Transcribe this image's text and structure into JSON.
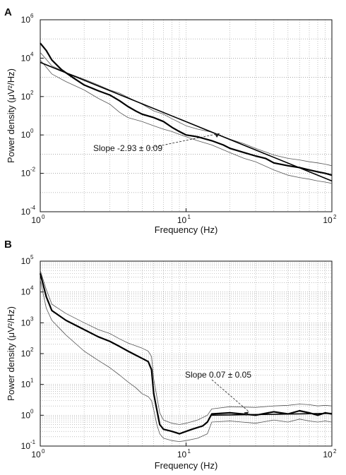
{
  "chart_data": [
    {
      "panel_label": "A",
      "type": "line",
      "xlabel": "Frequency (Hz)",
      "ylabel": "Power density (μV²/Hz)",
      "xscale": "log",
      "yscale": "log",
      "xlim": [
        1,
        100
      ],
      "ylim": [
        0.0001,
        1000000
      ],
      "x_ticks": [
        {
          "value": 1,
          "base": "10",
          "exp": "0"
        },
        {
          "value": 10,
          "base": "10",
          "exp": "1"
        },
        {
          "value": 100,
          "base": "10",
          "exp": "2"
        }
      ],
      "y_ticks": [
        {
          "value": 0.0001,
          "base": "10",
          "exp": "-4"
        },
        {
          "value": 0.01,
          "base": "10",
          "exp": "-2"
        },
        {
          "value": 1,
          "base": "10",
          "exp": "0"
        },
        {
          "value": 100,
          "base": "10",
          "exp": "2"
        },
        {
          "value": 10000,
          "base": "10",
          "exp": "4"
        },
        {
          "value": 1000000,
          "base": "10",
          "exp": "6"
        }
      ],
      "grid": true,
      "annotation": "Slope  -2.93 ± 0.09",
      "annotation_target": [
        17,
        1.2
      ],
      "series": [
        {
          "role": "mean",
          "style": "thick",
          "x": [
            1,
            1.1,
            1.2,
            1.4,
            1.7,
            2,
            2.5,
            3,
            3.5,
            4,
            4.5,
            5,
            6,
            7,
            8,
            9,
            10,
            12,
            15,
            18,
            20,
            25,
            30,
            35,
            40,
            50,
            60,
            70,
            80,
            90,
            100
          ],
          "y": [
            60000,
            25000,
            8000,
            2500,
            900,
            400,
            200,
            120,
            60,
            30,
            18,
            12,
            8,
            5,
            2.5,
            1.5,
            1.0,
            0.8,
            0.5,
            0.3,
            0.2,
            0.12,
            0.08,
            0.06,
            0.035,
            0.025,
            0.02,
            0.015,
            0.012,
            0.01,
            0.008
          ]
        },
        {
          "role": "upper",
          "style": "thin",
          "x": [
            1,
            1.2,
            1.5,
            2,
            2.5,
            3,
            3.5,
            4,
            5,
            6,
            7,
            8,
            10,
            12,
            15,
            20,
            25,
            30,
            40,
            50,
            60,
            70,
            80,
            90,
            100
          ],
          "y": [
            20000,
            4000,
            1800,
            800,
            400,
            220,
            150,
            90,
            40,
            18,
            12,
            7,
            3,
            2,
            1.4,
            0.6,
            0.35,
            0.2,
            0.09,
            0.06,
            0.05,
            0.04,
            0.035,
            0.03,
            0.025
          ]
        },
        {
          "role": "lower",
          "style": "thin",
          "x": [
            1,
            1.2,
            1.5,
            2,
            2.5,
            3,
            3.5,
            4,
            5,
            6,
            7,
            8,
            10,
            12,
            15,
            20,
            25,
            30,
            40,
            50,
            60,
            70,
            80,
            90,
            100
          ],
          "y": [
            8000,
            1500,
            600,
            220,
            80,
            40,
            15,
            8,
            5,
            3,
            2,
            1.5,
            0.8,
            0.5,
            0.3,
            0.12,
            0.06,
            0.04,
            0.015,
            0.008,
            0.006,
            0.005,
            0.004,
            0.0035,
            0.003
          ]
        },
        {
          "role": "fit",
          "style": "straight",
          "x": [
            1,
            100
          ],
          "y": [
            6000,
            0.004
          ]
        }
      ]
    },
    {
      "panel_label": "B",
      "type": "line",
      "xlabel": "Frequency (Hz)",
      "ylabel": "Power density (μV²/Hz)",
      "xscale": "log",
      "yscale": "log",
      "xlim": [
        1,
        100
      ],
      "ylim": [
        0.1,
        100000
      ],
      "x_ticks": [
        {
          "value": 1,
          "base": "10",
          "exp": "0"
        },
        {
          "value": 10,
          "base": "10",
          "exp": "1"
        },
        {
          "value": 100,
          "base": "10",
          "exp": "2"
        }
      ],
      "y_ticks": [
        {
          "value": 0.1,
          "base": "10",
          "exp": "-1"
        },
        {
          "value": 1,
          "base": "10",
          "exp": "0"
        },
        {
          "value": 10,
          "base": "10",
          "exp": "1"
        },
        {
          "value": 100,
          "base": "10",
          "exp": "2"
        },
        {
          "value": 1000,
          "base": "10",
          "exp": "3"
        },
        {
          "value": 10000,
          "base": "10",
          "exp": "4"
        },
        {
          "value": 100000,
          "base": "10",
          "exp": "5"
        }
      ],
      "grid": true,
      "annotation": "Slope 0.07 ± 0.05",
      "annotation_target": [
        27,
        1.3
      ],
      "series": [
        {
          "role": "mean",
          "style": "thick",
          "x": [
            1,
            1.1,
            1.2,
            1.5,
            2,
            2.5,
            3,
            3.5,
            4,
            4.5,
            5,
            5.5,
            5.8,
            6,
            6.3,
            6.6,
            7,
            8,
            9,
            10,
            11,
            12,
            13,
            14,
            15,
            20,
            30,
            40,
            50,
            60,
            70,
            80,
            90,
            100
          ],
          "y": [
            40000,
            7000,
            2500,
            1200,
            600,
            350,
            250,
            170,
            120,
            90,
            70,
            55,
            30,
            5,
            1.5,
            0.5,
            0.35,
            0.3,
            0.25,
            0.3,
            0.35,
            0.4,
            0.45,
            0.6,
            1.1,
            1.2,
            1.0,
            1.3,
            1.1,
            1.4,
            1.2,
            1.0,
            1.2,
            1.1
          ]
        },
        {
          "role": "upper",
          "style": "thin",
          "x": [
            1,
            1.1,
            1.2,
            1.5,
            2,
            2.5,
            3,
            3.5,
            4,
            4.5,
            5,
            5.5,
            5.8,
            6,
            6.3,
            6.6,
            7,
            8,
            9,
            10,
            12,
            14,
            15,
            20,
            30,
            40,
            50,
            60,
            70,
            80,
            90,
            100
          ],
          "y": [
            50000,
            12000,
            4000,
            2000,
            1000,
            600,
            450,
            300,
            220,
            180,
            150,
            120,
            80,
            15,
            4,
            1.2,
            0.7,
            0.55,
            0.5,
            0.55,
            0.7,
            1.0,
            1.6,
            1.9,
            1.8,
            2.0,
            2.1,
            2.3,
            2.2,
            2.0,
            2.1,
            2.0
          ]
        },
        {
          "role": "lower",
          "style": "thin",
          "x": [
            1,
            1.1,
            1.2,
            1.5,
            2,
            2.5,
            3,
            3.5,
            4,
            4.5,
            5,
            5.5,
            5.8,
            6,
            6.3,
            6.6,
            7,
            8,
            9,
            10,
            12,
            14,
            15,
            20,
            30,
            40,
            50,
            60,
            70,
            80,
            90,
            100
          ],
          "y": [
            25000,
            3000,
            1200,
            400,
            120,
            60,
            35,
            20,
            12,
            8,
            5,
            4,
            3,
            1.5,
            0.5,
            0.25,
            0.18,
            0.15,
            0.14,
            0.15,
            0.18,
            0.25,
            0.6,
            0.65,
            0.55,
            0.7,
            0.6,
            0.75,
            0.65,
            0.6,
            0.65,
            0.6
          ]
        },
        {
          "role": "fit",
          "style": "straight",
          "x": [
            15,
            100
          ],
          "y": [
            1.0,
            1.15
          ]
        }
      ]
    }
  ]
}
